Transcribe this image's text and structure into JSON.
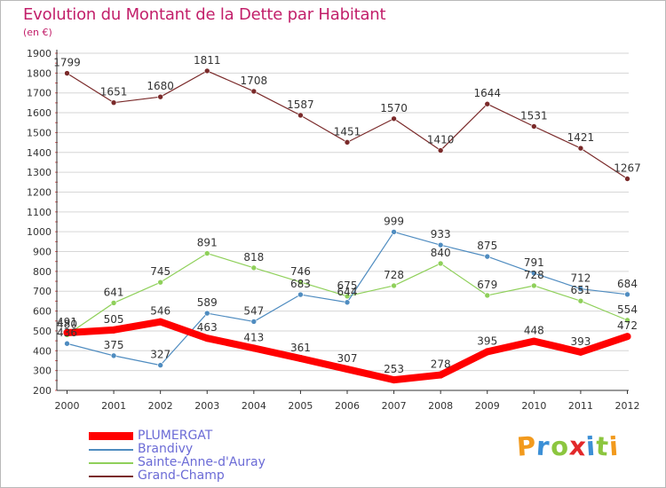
{
  "header": {
    "title": "Evolution du Montant de la Dette par Habitant",
    "subtitle": "(en €)"
  },
  "colors": {
    "title": "#c21f6a",
    "legend_text": "#6b6bd6",
    "axis": "#333333",
    "grid": "#d6d6d6"
  },
  "chart_data": {
    "type": "line",
    "title": "Evolution du Montant de la Dette par Habitant",
    "subtitle": "(en €)",
    "xlabel": "",
    "ylabel": "",
    "categories": [
      "2000",
      "2001",
      "2002",
      "2003",
      "2004",
      "2005",
      "2006",
      "2007",
      "2008",
      "2009",
      "2010",
      "2011",
      "2012"
    ],
    "ylim": [
      200,
      1900
    ],
    "yticks": [
      200,
      300,
      400,
      500,
      600,
      700,
      800,
      900,
      1000,
      1100,
      1200,
      1300,
      1400,
      1500,
      1600,
      1700,
      1800,
      1900
    ],
    "grid": true,
    "legend_position": "bottom-left",
    "series": [
      {
        "name": "PLUMERGAT",
        "color": "#ff0000",
        "values": [
          491,
          505,
          546,
          463,
          413,
          361,
          307,
          253,
          278,
          395,
          448,
          393,
          472
        ]
      },
      {
        "name": "Brandivy",
        "color": "#4f8cc0",
        "values": [
          436,
          375,
          327,
          589,
          547,
          683,
          644,
          999,
          933,
          875,
          791,
          712,
          684
        ]
      },
      {
        "name": "Sainte-Anne-d'Auray",
        "color": "#8fd05a",
        "values": [
          480,
          641,
          745,
          891,
          818,
          746,
          675,
          728,
          840,
          679,
          728,
          651,
          554
        ]
      },
      {
        "name": "Grand-Champ",
        "color": "#7a2a2a",
        "values": [
          1799,
          1651,
          1680,
          1811,
          1708,
          1587,
          1451,
          1570,
          1410,
          1644,
          1531,
          1421,
          1267
        ]
      }
    ]
  },
  "brand": {
    "text": "Proxiti",
    "letters": [
      "P",
      "r",
      "o",
      "x",
      "i",
      "t",
      "i"
    ],
    "letter_colors": [
      "#f29a1d",
      "#3b8fd6",
      "#8cc63f",
      "#e2282a",
      "#3b8fd6",
      "#8cc63f",
      "#f29a1d"
    ]
  }
}
